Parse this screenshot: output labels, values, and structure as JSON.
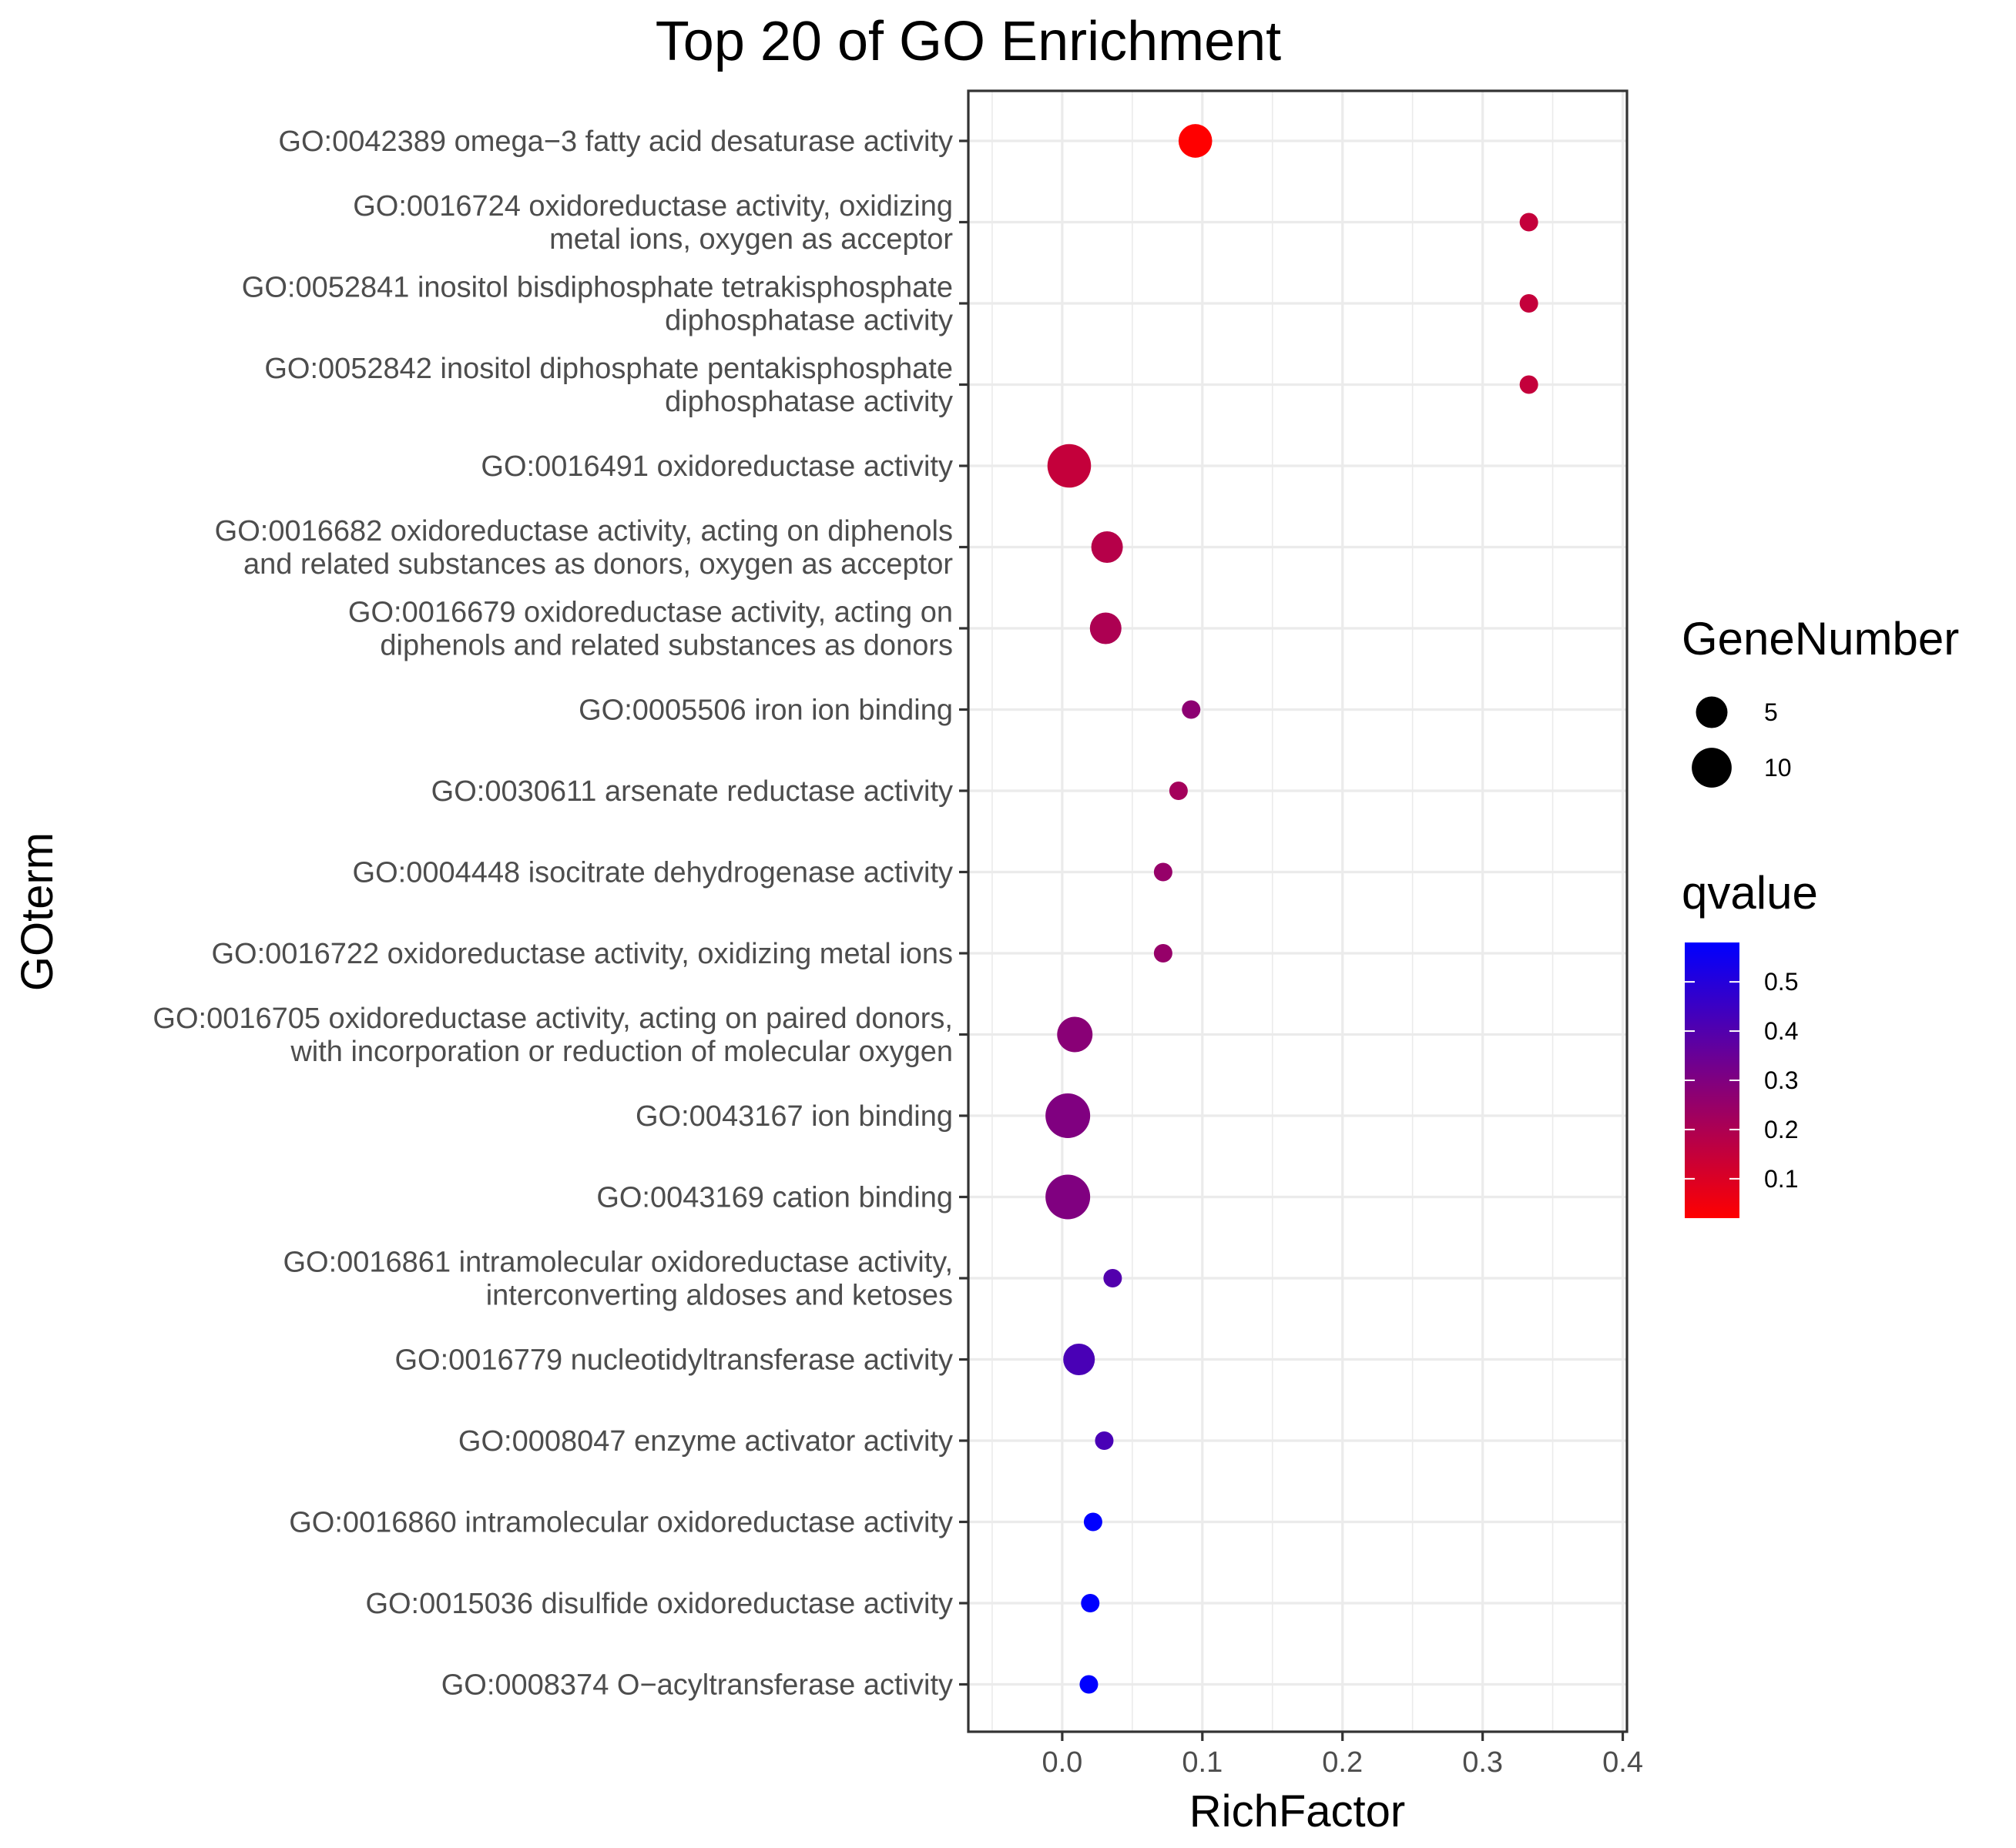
{
  "chart_data": {
    "type": "scatter",
    "title": "Top 20 of GO Enrichment",
    "xlabel": "RichFactor",
    "ylabel": "GOterm",
    "xlim": [
      -0.067,
      0.403
    ],
    "xticks": [
      0.0,
      0.1,
      0.2,
      0.3,
      0.4
    ],
    "xtick_labels": [
      "0.0",
      "0.1",
      "0.2",
      "0.3",
      "0.4"
    ],
    "grid": true,
    "legend_position": "right",
    "size_legend": {
      "title": "GeneNumber",
      "entries": [
        {
          "label": "5",
          "value": 5
        },
        {
          "label": "10",
          "value": 10
        }
      ]
    },
    "color_legend": {
      "title": "qvalue",
      "low_color": "#ff0000",
      "high_color": "#0000ff",
      "range": [
        0.02,
        0.58
      ],
      "ticks": [
        {
          "label": "0.5",
          "value": 0.5
        },
        {
          "label": "0.4",
          "value": 0.4
        },
        {
          "label": "0.3",
          "value": 0.3
        },
        {
          "label": "0.2",
          "value": 0.2
        },
        {
          "label": "0.1",
          "value": 0.1
        }
      ]
    },
    "points": [
      {
        "term": [
          "GO:0042389 omega−3 fatty acid desaturase activity"
        ],
        "x": 0.095,
        "genes": 6,
        "q": 0.02
      },
      {
        "term": [
          "GO:0016724 oxidoreductase activity, oxidizing",
          "metal ions, oxygen as acceptor"
        ],
        "x": 0.333,
        "genes": 2,
        "q": 0.15
      },
      {
        "term": [
          "GO:0052841 inositol bisdiphosphate tetrakisphosphate",
          "diphosphatase activity"
        ],
        "x": 0.333,
        "genes": 2,
        "q": 0.15
      },
      {
        "term": [
          "GO:0052842 inositol diphosphate pentakisphosphate",
          "diphosphatase activity"
        ],
        "x": 0.333,
        "genes": 2,
        "q": 0.15
      },
      {
        "term": [
          "GO:0016491 oxidoreductase activity"
        ],
        "x": 0.005,
        "genes": 13,
        "q": 0.15
      },
      {
        "term": [
          "GO:0016682 oxidoreductase activity, acting on diphenols",
          "and related substances as donors, oxygen as acceptor"
        ],
        "x": 0.032,
        "genes": 5,
        "q": 0.18
      },
      {
        "term": [
          "GO:0016679 oxidoreductase activity, acting on",
          "diphenols and related substances as donors"
        ],
        "x": 0.031,
        "genes": 5,
        "q": 0.2
      },
      {
        "term": [
          "GO:0005506 iron ion binding"
        ],
        "x": 0.092,
        "genes": 2,
        "q": 0.27
      },
      {
        "term": [
          "GO:0030611 arsenate reductase activity"
        ],
        "x": 0.083,
        "genes": 2,
        "q": 0.22
      },
      {
        "term": [
          "GO:0004448 isocitrate dehydrogenase activity"
        ],
        "x": 0.072,
        "genes": 2,
        "q": 0.25
      },
      {
        "term": [
          "GO:0016722 oxidoreductase activity, oxidizing metal ions"
        ],
        "x": 0.072,
        "genes": 2,
        "q": 0.25
      },
      {
        "term": [
          "GO:0016705 oxidoreductase activity, acting on paired donors,",
          "with incorporation or reduction of molecular oxygen"
        ],
        "x": 0.009,
        "genes": 7,
        "q": 0.28
      },
      {
        "term": [
          "GO:0043167 ion binding"
        ],
        "x": 0.004,
        "genes": 14,
        "q": 0.3
      },
      {
        "term": [
          "GO:0043169 cation binding"
        ],
        "x": 0.004,
        "genes": 14,
        "q": 0.3
      },
      {
        "term": [
          "GO:0016861 intramolecular oxidoreductase activity,",
          "interconverting aldoses and ketoses"
        ],
        "x": 0.036,
        "genes": 2,
        "q": 0.4
      },
      {
        "term": [
          "GO:0016779 nucleotidyltransferase activity"
        ],
        "x": 0.012,
        "genes": 5,
        "q": 0.42
      },
      {
        "term": [
          "GO:0008047 enzyme activator activity"
        ],
        "x": 0.03,
        "genes": 2,
        "q": 0.42
      },
      {
        "term": [
          "GO:0016860 intramolecular oxidoreductase activity"
        ],
        "x": 0.022,
        "genes": 2,
        "q": 0.58
      },
      {
        "term": [
          "GO:0015036 disulfide oxidoreductase activity"
        ],
        "x": 0.02,
        "genes": 2,
        "q": 0.58
      },
      {
        "term": [
          "GO:0008374 O−acyltransferase activity"
        ],
        "x": 0.019,
        "genes": 2,
        "q": 0.58
      }
    ]
  }
}
